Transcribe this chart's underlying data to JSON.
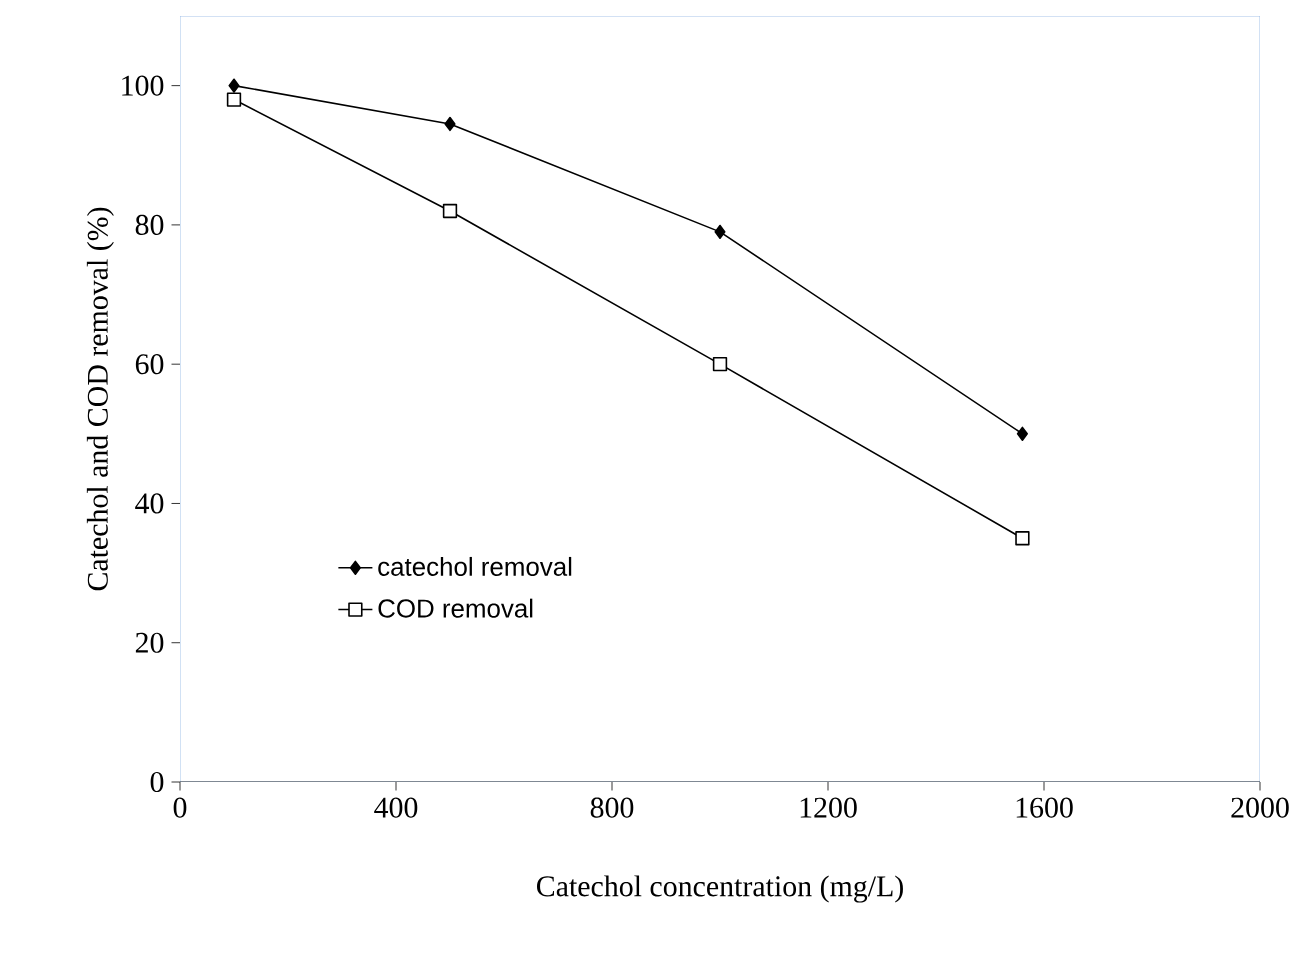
{
  "chart_data": {
    "type": "line",
    "xlabel": "Catechol concentration (mg/L)",
    "ylabel": "Catechol and COD removal (%)",
    "xlim": [
      0,
      2000
    ],
    "xticks": [
      0,
      400,
      800,
      1200,
      1600,
      2000
    ],
    "ylim": [
      0,
      110
    ],
    "yticks": [
      0,
      20,
      40,
      60,
      80,
      100
    ],
    "grid": false,
    "legend": "bottom left",
    "line_style": "solid",
    "series": [
      {
        "name": "catechol removal",
        "color": "#000000",
        "marker": "diamond",
        "x": [
          100,
          500,
          1000,
          1560
        ],
        "values": [
          100,
          94.5,
          79,
          50
        ]
      },
      {
        "name": "COD removal",
        "color": "#000000",
        "marker": "square",
        "x": [
          100,
          500,
          1000,
          1560
        ],
        "values": [
          98,
          82,
          60,
          35
        ]
      }
    ]
  }
}
